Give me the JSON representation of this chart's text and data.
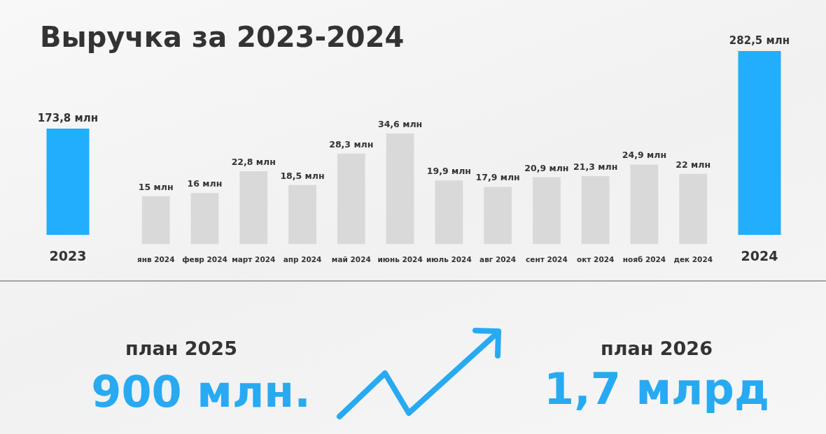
{
  "chart_data": [
    {
      "type": "bar",
      "title": "Выручка за 2023-2024",
      "categories": [
        "2023"
      ],
      "values": [
        173.8
      ],
      "value_labels": [
        "173,8 млн"
      ],
      "color": "#21aefc"
    },
    {
      "type": "bar",
      "categories": [
        "янв 2024",
        "февр 2024",
        "март 2024",
        "апр 2024",
        "май 2024",
        "июнь 2024",
        "июль 2024",
        "авг 2024",
        "сент 2024",
        "окт 2024",
        "нояб 2024",
        "дек 2024"
      ],
      "values": [
        15,
        16,
        22.8,
        18.5,
        28.3,
        34.6,
        19.9,
        17.9,
        20.9,
        21.3,
        24.9,
        22
      ],
      "value_labels": [
        "15 млн",
        "16 млн",
        "22,8 млн",
        "18,5 млн",
        "28,3 млн",
        "34,6 млн",
        "19,9 млн",
        "17,9 млн",
        "20,9 млн",
        "21,3 млн",
        "24,9 млн",
        "22 млн"
      ],
      "color": "#d9d9d9"
    },
    {
      "type": "bar",
      "categories": [
        "2024"
      ],
      "values": [
        282.5
      ],
      "value_labels": [
        "282,5 млн"
      ],
      "color": "#21aefc"
    },
    {
      "type": "other",
      "annotations": [
        "план 2025",
        "900 млн.",
        "план 2026",
        "1,7 млрд"
      ]
    }
  ]
}
